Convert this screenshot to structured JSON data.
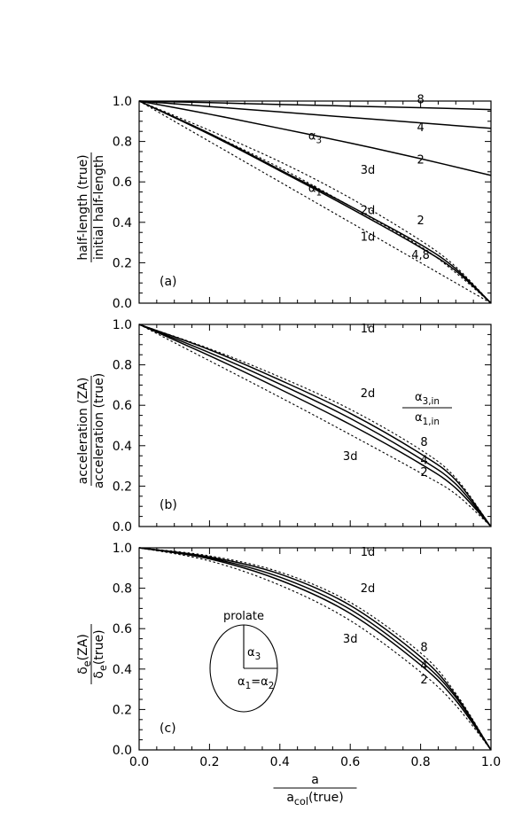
{
  "chart_data": [
    {
      "panel_label": "(a)",
      "type": "line",
      "ylabel_numerator": "half-length (true)",
      "ylabel_denominator": "initial half-length",
      "xlim": [
        0,
        1
      ],
      "ylim": [
        0,
        1.0
      ],
      "x_ticks": [
        "0.0",
        "0.2",
        "0.4",
        "0.6",
        "0.8",
        "1.0"
      ],
      "y_ticks": [
        "0.0",
        "0.2",
        "0.4",
        "0.6",
        "0.8",
        "1.0"
      ],
      "series": [
        {
          "style": "solid",
          "x": [
            0,
            0.2,
            0.4,
            0.6,
            0.8,
            1.0
          ],
          "y": [
            1.0,
            0.992,
            0.983,
            0.975,
            0.967,
            0.958
          ]
        },
        {
          "style": "solid",
          "x": [
            0,
            0.2,
            0.4,
            0.6,
            0.8,
            1.0
          ],
          "y": [
            1.0,
            0.973,
            0.946,
            0.919,
            0.892,
            0.865
          ]
        },
        {
          "style": "solid",
          "x": [
            0,
            0.2,
            0.4,
            0.6,
            0.8,
            1.0
          ],
          "y": [
            1.0,
            0.935,
            0.865,
            0.792,
            0.715,
            0.632
          ]
        },
        {
          "style": "solid",
          "x": [
            0,
            0.2,
            0.4,
            0.6,
            0.8,
            0.9,
            1.0
          ],
          "y": [
            1.0,
            0.84,
            0.66,
            0.48,
            0.29,
            0.17,
            0.0
          ]
        },
        {
          "style": "solid",
          "x": [
            0,
            0.2,
            0.4,
            0.6,
            0.8,
            0.9,
            1.0
          ],
          "y": [
            1.0,
            0.835,
            0.655,
            0.47,
            0.275,
            0.16,
            0.0
          ]
        },
        {
          "style": "dotted",
          "x": [
            0,
            0.2,
            0.4,
            0.6,
            0.8,
            0.9,
            1.0
          ],
          "y": [
            1.0,
            0.855,
            0.7,
            0.52,
            0.31,
            0.18,
            0.0
          ]
        },
        {
          "style": "dotted",
          "x": [
            0,
            0.2,
            0.4,
            0.6,
            0.8,
            0.9,
            1.0
          ],
          "y": [
            1.0,
            0.84,
            0.67,
            0.48,
            0.28,
            0.15,
            0.0
          ]
        },
        {
          "style": "dotted",
          "x": [
            0,
            0.2,
            0.4,
            0.6,
            0.8,
            0.9,
            1.0
          ],
          "y": [
            1.0,
            0.8,
            0.6,
            0.4,
            0.2,
            0.1,
            0.0
          ]
        }
      ],
      "annotations": [
        {
          "text": "8",
          "x": 0.8,
          "y": 0.99
        },
        {
          "text": "4",
          "x": 0.8,
          "y": 0.85
        },
        {
          "text": "2",
          "x": 0.8,
          "y": 0.69
        },
        {
          "text": "α3",
          "x": 0.5,
          "y": 0.81
        },
        {
          "text": "3d",
          "x": 0.65,
          "y": 0.64
        },
        {
          "text": "α1",
          "x": 0.5,
          "y": 0.55
        },
        {
          "text": "2d",
          "x": 0.65,
          "y": 0.44
        },
        {
          "text": "1d",
          "x": 0.65,
          "y": 0.31
        },
        {
          "text": "2",
          "x": 0.8,
          "y": 0.39
        },
        {
          "text": "4,8",
          "x": 0.8,
          "y": 0.22
        }
      ]
    },
    {
      "panel_label": "(b)",
      "type": "line",
      "ylabel_numerator": "acceleration (ZA)",
      "ylabel_denominator": "acceleration (true)",
      "xlim": [
        0,
        1
      ],
      "ylim": [
        0,
        1.0
      ],
      "x_ticks": [
        "0.0",
        "0.2",
        "0.4",
        "0.6",
        "0.8",
        "1.0"
      ],
      "y_ticks": [
        "0.0",
        "0.2",
        "0.4",
        "0.6",
        "0.8",
        "1.0"
      ],
      "legend_numerator": "α3,in",
      "legend_denominator": "α1,in",
      "series": [
        {
          "style": "dotted",
          "x": [
            0,
            1.0
          ],
          "y": [
            1.0,
            1.0
          ]
        },
        {
          "style": "dotted",
          "x": [
            0,
            0.2,
            0.4,
            0.6,
            0.8,
            0.9,
            1.0
          ],
          "y": [
            1.0,
            0.88,
            0.74,
            0.58,
            0.38,
            0.24,
            0.0
          ]
        },
        {
          "style": "solid",
          "x": [
            0,
            0.2,
            0.4,
            0.6,
            0.8,
            0.9,
            1.0
          ],
          "y": [
            1.0,
            0.875,
            0.725,
            0.56,
            0.36,
            0.23,
            0.0
          ]
        },
        {
          "style": "solid",
          "x": [
            0,
            0.2,
            0.4,
            0.6,
            0.8,
            0.9,
            1.0
          ],
          "y": [
            1.0,
            0.86,
            0.705,
            0.535,
            0.335,
            0.21,
            0.0
          ]
        },
        {
          "style": "solid",
          "x": [
            0,
            0.2,
            0.4,
            0.6,
            0.8,
            0.9,
            1.0
          ],
          "y": [
            1.0,
            0.845,
            0.68,
            0.505,
            0.31,
            0.19,
            0.0
          ]
        },
        {
          "style": "dotted",
          "x": [
            0,
            0.2,
            0.4,
            0.6,
            0.8,
            0.9,
            1.0
          ],
          "y": [
            1.0,
            0.82,
            0.64,
            0.455,
            0.265,
            0.16,
            0.0
          ]
        }
      ],
      "annotations": [
        {
          "text": "1d",
          "x": 0.65,
          "y": 0.96
        },
        {
          "text": "2d",
          "x": 0.65,
          "y": 0.64
        },
        {
          "text": "8",
          "x": 0.81,
          "y": 0.4
        },
        {
          "text": "4",
          "x": 0.81,
          "y": 0.31
        },
        {
          "text": "2",
          "x": 0.81,
          "y": 0.25
        },
        {
          "text": "3d",
          "x": 0.6,
          "y": 0.33
        }
      ]
    },
    {
      "panel_label": "(c)",
      "type": "line",
      "ylabel_numerator": "δe(ZA)",
      "ylabel_denominator": "δe(true)",
      "xlim": [
        0,
        1
      ],
      "ylim": [
        0,
        1.0
      ],
      "x_ticks": [
        "0.0",
        "0.2",
        "0.4",
        "0.6",
        "0.8",
        "1.0"
      ],
      "y_ticks": [
        "0.0",
        "0.2",
        "0.4",
        "0.6",
        "0.8",
        "1.0"
      ],
      "xlabel_numerator": "a",
      "xlabel_denominator": "acol(true)",
      "inset": {
        "title": "prolate",
        "axis_label_major": "α3",
        "axis_label_minor": "α1=α2"
      },
      "series": [
        {
          "style": "dotted",
          "x": [
            0,
            1.0
          ],
          "y": [
            1.0,
            1.0
          ]
        },
        {
          "style": "dotted",
          "x": [
            0,
            0.2,
            0.4,
            0.6,
            0.8,
            0.9,
            1.0
          ],
          "y": [
            1.0,
            0.96,
            0.88,
            0.73,
            0.48,
            0.28,
            0.0
          ]
        },
        {
          "style": "solid",
          "x": [
            0,
            0.2,
            0.4,
            0.6,
            0.8,
            0.9,
            1.0
          ],
          "y": [
            1.0,
            0.955,
            0.87,
            0.715,
            0.46,
            0.27,
            0.0
          ]
        },
        {
          "style": "solid",
          "x": [
            0,
            0.2,
            0.4,
            0.6,
            0.8,
            0.9,
            1.0
          ],
          "y": [
            1.0,
            0.95,
            0.855,
            0.695,
            0.44,
            0.26,
            0.0
          ]
        },
        {
          "style": "solid",
          "x": [
            0,
            0.2,
            0.4,
            0.6,
            0.8,
            0.9,
            1.0
          ],
          "y": [
            1.0,
            0.945,
            0.84,
            0.675,
            0.42,
            0.245,
            0.0
          ]
        },
        {
          "style": "dotted",
          "x": [
            0,
            0.2,
            0.4,
            0.6,
            0.8,
            0.9,
            1.0
          ],
          "y": [
            1.0,
            0.935,
            0.815,
            0.64,
            0.385,
            0.22,
            0.0
          ]
        }
      ],
      "annotations": [
        {
          "text": "1d",
          "x": 0.65,
          "y": 0.96
        },
        {
          "text": "2d",
          "x": 0.65,
          "y": 0.78
        },
        {
          "text": "3d",
          "x": 0.6,
          "y": 0.53
        },
        {
          "text": "8",
          "x": 0.81,
          "y": 0.49
        },
        {
          "text": "4",
          "x": 0.81,
          "y": 0.4
        },
        {
          "text": "2",
          "x": 0.81,
          "y": 0.33
        }
      ]
    }
  ]
}
